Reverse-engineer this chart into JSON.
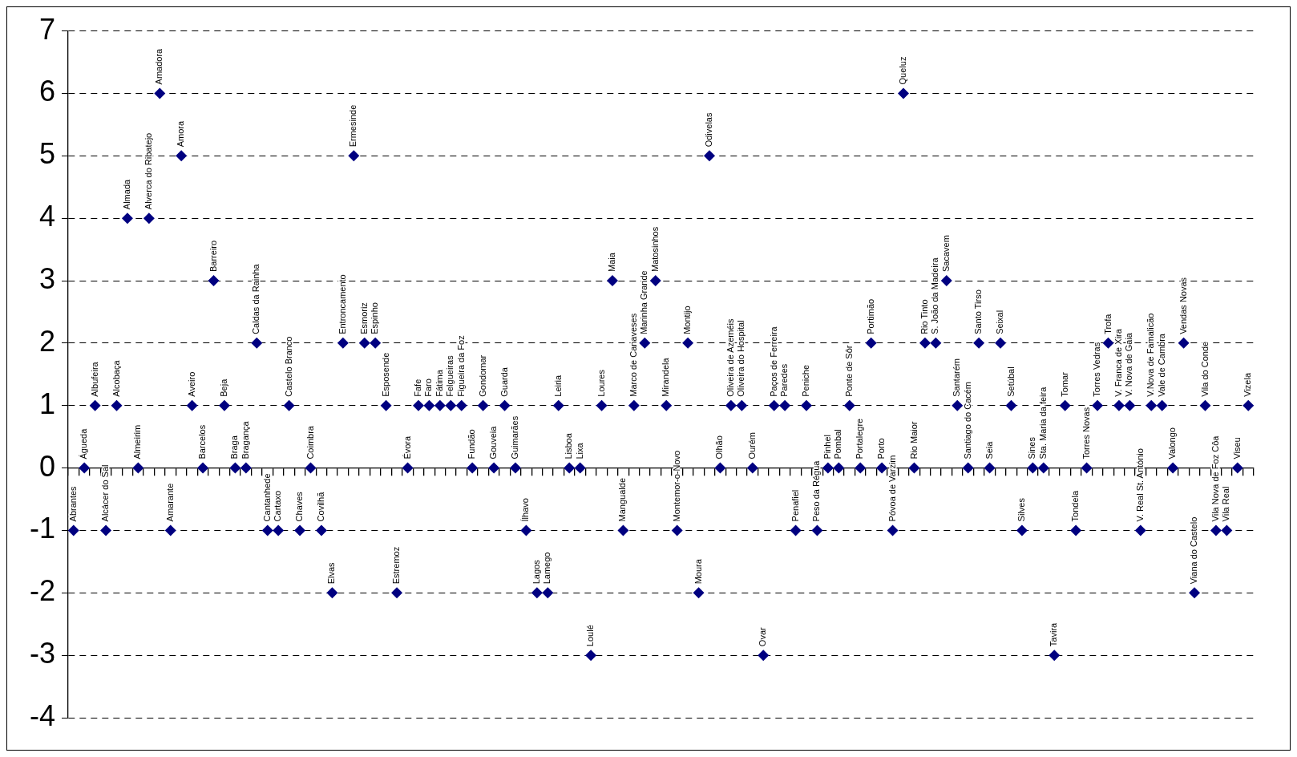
{
  "chart_data": {
    "type": "scatter",
    "marker": "diamond",
    "color": "#000080",
    "grid": "y",
    "tick_labels": "y",
    "ylim": [
      -4,
      7
    ],
    "yticks": [
      -4,
      -3,
      -2,
      -1,
      0,
      1,
      2,
      3,
      4,
      5,
      6,
      7
    ],
    "categories": [
      "Abrantes",
      "Águeda",
      "Albufeira",
      "Alcácer do Sal",
      "Alcobaça",
      "Almada",
      "Almeirim",
      "Alverca do Ribatejo",
      "Amadora",
      "Amarante",
      "Amora",
      "Aveiro",
      "Barcelos",
      "Barreiro",
      "Beja",
      "Braga",
      "Bragança",
      "Caldas da Rainha",
      "Cantanhede",
      "Cartaxo",
      "Castelo Branco",
      "Chaves",
      "Coimbra",
      "Covilhã",
      "Elvas",
      "Entroncamento",
      "Ermesinde",
      "Esmoriz",
      "Espinho",
      "Esposende",
      "Estremoz",
      "Évora",
      "Fafe",
      "Faro",
      "Fátima",
      "Felgueiras",
      "Figueira da Foz",
      "Fundão",
      "Gondomar",
      "Gouveia",
      "Guarda",
      "Guimarães",
      "Ílhavo",
      "Lagos",
      "Lamego",
      "Leiria",
      "Lisboa",
      "Lixa",
      "Loulé",
      "Loures",
      "Maia",
      "Mangualde",
      "Marco de Canaveses",
      "Marinha Grande",
      "Matosinhos",
      "Mirandela",
      "Montemor-o-Novo",
      "Montijo",
      "Moura",
      "Odivelas",
      "Olhão",
      "Oliveira de Azeméis",
      "Oliveira do Hospital",
      "Ourém",
      "Ovar",
      "Paços de Ferreira",
      "Paredes",
      "Penafiel",
      "Peniche",
      "Peso da Régua",
      "Pinhel",
      "Pombal",
      "Ponte de Sôr",
      "Portalegre",
      "Portimão",
      "Porto",
      "Póvoa de Varzim",
      "Queluz",
      "Rio Maior",
      "Rio Tinto",
      "S. João da Madeira",
      "Sacavem",
      "Santarém",
      "Santiago do Cacém",
      "Santo Tirso",
      "Seia",
      "Seixal",
      "Setúbal",
      "Silves",
      "Sines",
      "Sta. Maria da feira",
      "Tavira",
      "Tomar",
      "Tondela",
      "Torres Novas",
      "Torres Vedras",
      "Trofa",
      "V. Franca de Xira",
      "V. Nova de Gaia",
      "V. Real St. António",
      "V.Nova de Famalicão",
      "Vale de Cambra",
      "Valongo",
      "Vendas Novas",
      "Viana do Castelo",
      "Vila do Conde",
      "Vila Nova de Foz Côa",
      "Vila Real",
      "Viseu",
      "Vizela"
    ],
    "values": [
      -1,
      0,
      1,
      -1,
      1,
      4,
      0,
      4,
      6,
      -1,
      5,
      1,
      0,
      3,
      1,
      0,
      0,
      2,
      -1,
      -1,
      1,
      -1,
      0,
      -1,
      -2,
      2,
      5,
      2,
      2,
      1,
      -2,
      0,
      1,
      1,
      1,
      1,
      1,
      0,
      1,
      0,
      1,
      0,
      -1,
      -2,
      -2,
      1,
      0,
      0,
      -3,
      1,
      3,
      -1,
      1,
      2,
      3,
      1,
      -1,
      2,
      -2,
      5,
      0,
      1,
      1,
      0,
      -3,
      1,
      1,
      -1,
      1,
      -1,
      0,
      0,
      1,
      0,
      2,
      0,
      -1,
      6,
      0,
      2,
      2,
      3,
      1,
      0,
      2,
      0,
      2,
      1,
      -1,
      0,
      0,
      -3,
      1,
      -1,
      0,
      1,
      2,
      1,
      1,
      -1,
      1,
      1,
      0,
      2,
      -2,
      1,
      -1,
      -1,
      0,
      1
    ]
  }
}
